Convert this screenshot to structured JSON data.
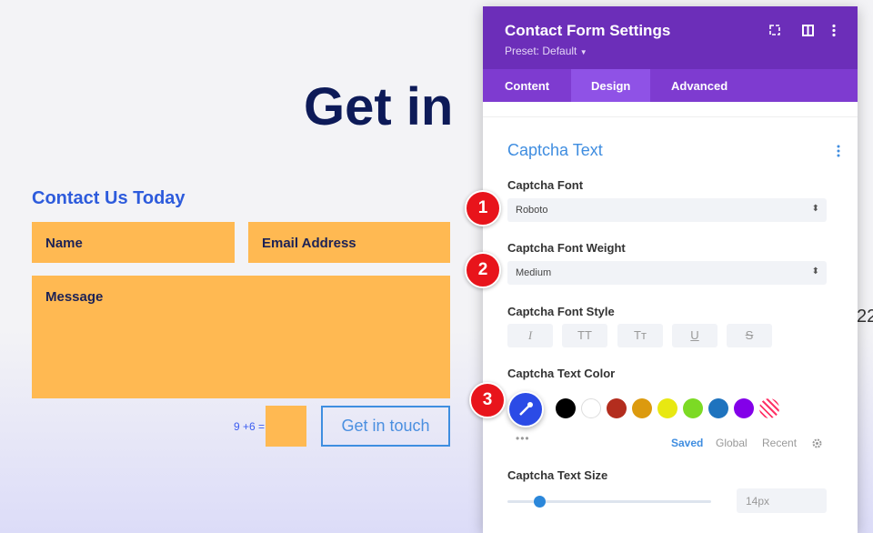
{
  "page": {
    "heading": "Get in",
    "form_title": "Contact Us Today",
    "fields": [
      "Name",
      "Email Address",
      "Message"
    ],
    "captcha": "9 +6 =",
    "button": "Get in touch",
    "edge_number": "22"
  },
  "panel": {
    "title": "Contact Form Settings",
    "preset": "Preset: Default",
    "tabs": [
      "Content",
      "Design",
      "Advanced"
    ],
    "section": "Captcha Text",
    "font_label": "Captcha Font",
    "font_value": "Roboto",
    "weight_label": "Captcha Font Weight",
    "weight_value": "Medium",
    "style_label": "Captcha Font Style",
    "style_buttons": [
      "I",
      "TT",
      "Tт",
      "U",
      "S"
    ],
    "color_label": "Captcha Text Color",
    "color_tabs": [
      "Saved",
      "Global",
      "Recent"
    ],
    "size_label": "Captcha Text Size",
    "size_value": "14px",
    "steps": [
      "1",
      "2",
      "3"
    ]
  }
}
